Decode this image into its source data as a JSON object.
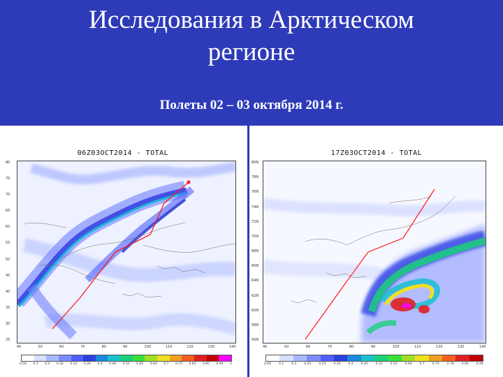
{
  "slide": {
    "title_line1": "Исследования в Арктическом",
    "title_line2": "регионе",
    "subtitle": "Полеты 02 – 03 октября 2014 г.",
    "header_color": "#2e3bb8"
  },
  "left_panel": {
    "title": "06Z03OCT2014 - TOTAL",
    "lat_labels": [
      "80",
      "75",
      "70",
      "65",
      "60",
      "55",
      "50",
      "45",
      "40",
      "35",
      "30",
      "25"
    ],
    "lon_labels": [
      "40",
      "50",
      "60",
      "70",
      "80",
      "90",
      "100",
      "110",
      "120",
      "130",
      "140"
    ],
    "colorbar_labels": [
      "0.04",
      "0.1",
      "0.4",
      "0.32",
      "0.22",
      "0.26",
      "0.4",
      "0.46",
      "0.55",
      "0.65",
      "0.64",
      "0.7",
      "0.75",
      "0.83",
      "0.85",
      "0.94",
      "1"
    ]
  },
  "right_panel": {
    "title": "17Z03OCT2014 - TOTAL",
    "lat_labels": [
      "80N",
      "78N",
      "76N",
      "74N",
      "72N",
      "70N",
      "68N",
      "66N",
      "64N",
      "62N",
      "60N",
      "58N",
      "56N"
    ],
    "lon_labels": [
      "40",
      "50",
      "60",
      "70",
      "80",
      "90",
      "100",
      "110",
      "120",
      "130",
      "140"
    ],
    "colorbar_labels": [
      "0.04",
      "0.1",
      "0.3",
      "0.22",
      "0.25",
      "0.34",
      "0.4",
      "0.45",
      "0.52",
      "0.55",
      "0.64",
      "0.7",
      "0.75",
      "0.78",
      "0.85",
      "0.94"
    ]
  },
  "colorbar_colors": [
    "#ffffff",
    "#d8e0ff",
    "#a9b8ff",
    "#7b8cff",
    "#4f5fff",
    "#2a3fe0",
    "#1a8ae0",
    "#19c0d0",
    "#1ad07a",
    "#3ae03a",
    "#a0e020",
    "#f0e020",
    "#f0a020",
    "#f06020",
    "#e02020",
    "#c00000",
    "#ff00ff"
  ],
  "icons": {
    "flight_track": "red-flight-line",
    "coastlines": "map-coastline"
  }
}
